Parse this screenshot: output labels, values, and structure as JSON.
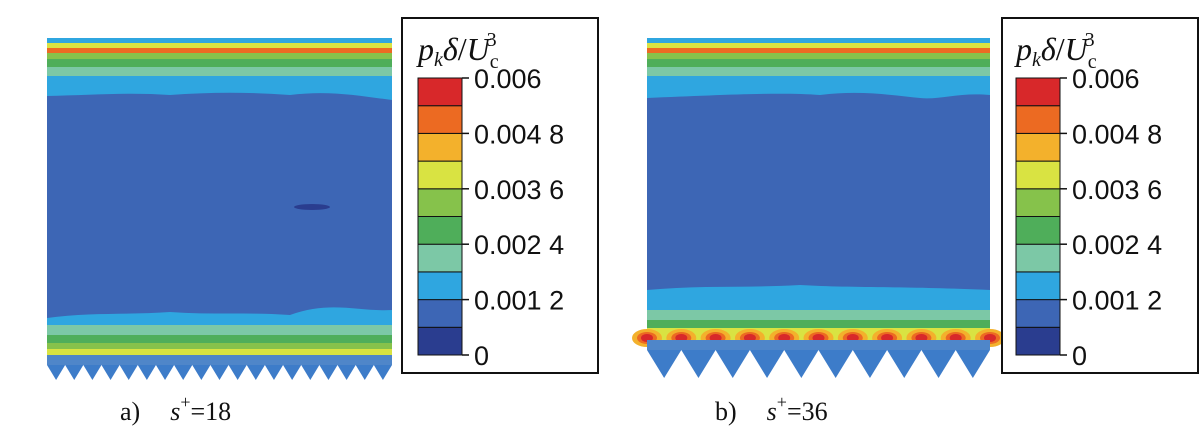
{
  "chart_data": [
    {
      "type": "heatmap",
      "panel_label": "a)",
      "caption_var": "s",
      "caption_sup": "+",
      "caption_value": "=18",
      "colorbar_title": {
        "p": "p",
        "k": "k",
        "delta": "δ",
        "slash": "/",
        "U": "U",
        "c": "c",
        "exp": "3"
      },
      "colorbar_ticks": [
        "0.006",
        "0.004 8",
        "0.003 6",
        "0.002 4",
        "0.001 2",
        "0"
      ],
      "colorbar_tick_values": [
        0.006,
        0.0048,
        0.0036,
        0.0024,
        0.0012,
        0
      ],
      "colorbar_range": [
        0,
        0.006
      ],
      "riblet_count": 19
    },
    {
      "type": "heatmap",
      "panel_label": "b)",
      "caption_var": "s",
      "caption_sup": "+",
      "caption_value": "=36",
      "colorbar_title": {
        "p": "p",
        "k": "k",
        "delta": "δ",
        "slash": "/",
        "U": "U",
        "c": "c",
        "exp": "3"
      },
      "colorbar_ticks": [
        "0.006",
        "0.004 8",
        "0.003 6",
        "0.002 4",
        "0.001 2",
        "0"
      ],
      "colorbar_tick_values": [
        0.006,
        0.0048,
        0.0036,
        0.0024,
        0.0012,
        0
      ],
      "colorbar_range": [
        0,
        0.006
      ],
      "riblet_count": 10
    }
  ],
  "colormap": [
    "#2a3d8f",
    "#3d66b5",
    "#2fa6e0",
    "#7cc8a6",
    "#4fae5a",
    "#86c24b",
    "#d9e342",
    "#f3b12c",
    "#ec6a22",
    "#d8282a"
  ]
}
